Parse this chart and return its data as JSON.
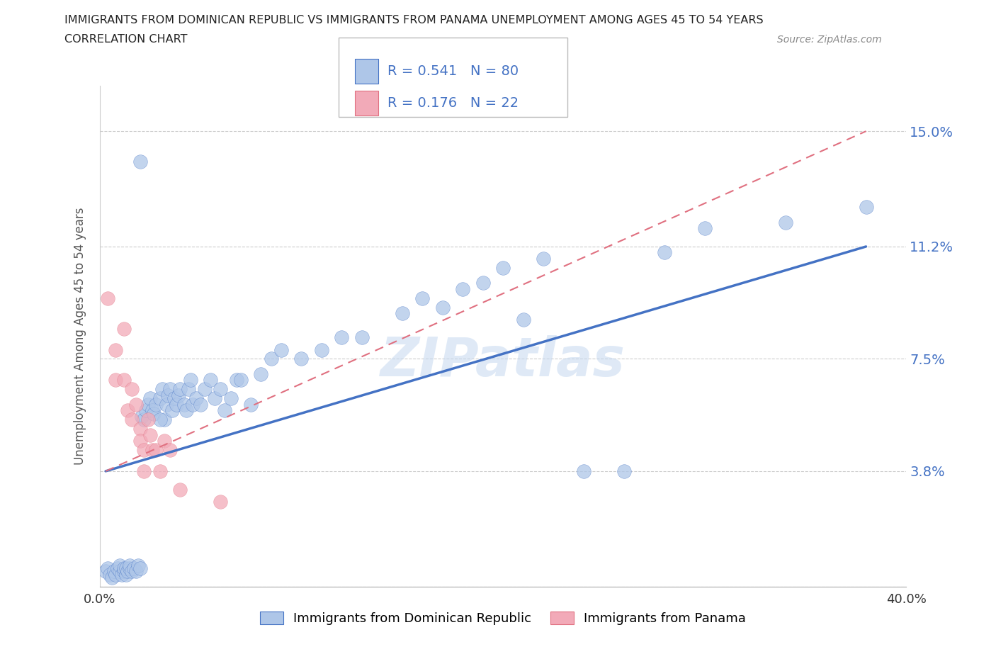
{
  "title_line1": "IMMIGRANTS FROM DOMINICAN REPUBLIC VS IMMIGRANTS FROM PANAMA UNEMPLOYMENT AMONG AGES 45 TO 54 YEARS",
  "title_line2": "CORRELATION CHART",
  "source_text": "Source: ZipAtlas.com",
  "ylabel": "Unemployment Among Ages 45 to 54 years",
  "xlim": [
    0.0,
    0.4
  ],
  "ylim": [
    0.0,
    0.165
  ],
  "ytick_values": [
    0.0,
    0.038,
    0.075,
    0.112,
    0.15
  ],
  "ytick_labels": [
    "",
    "3.8%",
    "7.5%",
    "11.2%",
    "15.0%"
  ],
  "r_blue": 0.541,
  "n_blue": 80,
  "r_pink": 0.176,
  "n_pink": 22,
  "legend_label_blue": "Immigrants from Dominican Republic",
  "legend_label_pink": "Immigrants from Panama",
  "blue_color": "#aec6e8",
  "pink_color": "#f2aab8",
  "trend_blue_color": "#4472c4",
  "trend_pink_color": "#e07080",
  "grid_color": "#cccccc",
  "watermark_color": "#c5d8f0",
  "blue_scatter": [
    [
      0.003,
      0.005
    ],
    [
      0.004,
      0.006
    ],
    [
      0.005,
      0.004
    ],
    [
      0.006,
      0.003
    ],
    [
      0.007,
      0.005
    ],
    [
      0.008,
      0.004
    ],
    [
      0.009,
      0.006
    ],
    [
      0.01,
      0.005
    ],
    [
      0.01,
      0.007
    ],
    [
      0.011,
      0.004
    ],
    [
      0.012,
      0.005
    ],
    [
      0.012,
      0.006
    ],
    [
      0.013,
      0.004
    ],
    [
      0.013,
      0.006
    ],
    [
      0.014,
      0.005
    ],
    [
      0.015,
      0.006
    ],
    [
      0.015,
      0.007
    ],
    [
      0.016,
      0.005
    ],
    [
      0.017,
      0.006
    ],
    [
      0.018,
      0.005
    ],
    [
      0.019,
      0.007
    ],
    [
      0.02,
      0.006
    ],
    [
      0.021,
      0.056
    ],
    [
      0.022,
      0.055
    ],
    [
      0.023,
      0.058
    ],
    [
      0.024,
      0.06
    ],
    [
      0.025,
      0.062
    ],
    [
      0.026,
      0.058
    ],
    [
      0.027,
      0.057
    ],
    [
      0.028,
      0.06
    ],
    [
      0.03,
      0.062
    ],
    [
      0.031,
      0.065
    ],
    [
      0.032,
      0.055
    ],
    [
      0.033,
      0.06
    ],
    [
      0.034,
      0.063
    ],
    [
      0.035,
      0.065
    ],
    [
      0.036,
      0.058
    ],
    [
      0.037,
      0.062
    ],
    [
      0.038,
      0.06
    ],
    [
      0.039,
      0.063
    ],
    [
      0.04,
      0.065
    ],
    [
      0.042,
      0.06
    ],
    [
      0.043,
      0.058
    ],
    [
      0.044,
      0.065
    ],
    [
      0.045,
      0.068
    ],
    [
      0.046,
      0.06
    ],
    [
      0.048,
      0.062
    ],
    [
      0.05,
      0.06
    ],
    [
      0.052,
      0.065
    ],
    [
      0.055,
      0.068
    ],
    [
      0.057,
      0.062
    ],
    [
      0.06,
      0.065
    ],
    [
      0.062,
      0.058
    ],
    [
      0.065,
      0.062
    ],
    [
      0.068,
      0.068
    ],
    [
      0.07,
      0.068
    ],
    [
      0.075,
      0.06
    ],
    [
      0.08,
      0.07
    ],
    [
      0.085,
      0.075
    ],
    [
      0.09,
      0.078
    ],
    [
      0.1,
      0.075
    ],
    [
      0.11,
      0.078
    ],
    [
      0.12,
      0.082
    ],
    [
      0.13,
      0.082
    ],
    [
      0.02,
      0.14
    ],
    [
      0.03,
      0.055
    ],
    [
      0.15,
      0.09
    ],
    [
      0.16,
      0.095
    ],
    [
      0.17,
      0.092
    ],
    [
      0.18,
      0.098
    ],
    [
      0.19,
      0.1
    ],
    [
      0.2,
      0.105
    ],
    [
      0.21,
      0.088
    ],
    [
      0.22,
      0.108
    ],
    [
      0.24,
      0.038
    ],
    [
      0.26,
      0.038
    ],
    [
      0.28,
      0.11
    ],
    [
      0.3,
      0.118
    ],
    [
      0.34,
      0.12
    ],
    [
      0.38,
      0.125
    ]
  ],
  "pink_scatter": [
    [
      0.004,
      0.095
    ],
    [
      0.008,
      0.078
    ],
    [
      0.008,
      0.068
    ],
    [
      0.012,
      0.085
    ],
    [
      0.012,
      0.068
    ],
    [
      0.014,
      0.058
    ],
    [
      0.016,
      0.065
    ],
    [
      0.016,
      0.055
    ],
    [
      0.018,
      0.06
    ],
    [
      0.02,
      0.052
    ],
    [
      0.02,
      0.048
    ],
    [
      0.022,
      0.045
    ],
    [
      0.022,
      0.038
    ],
    [
      0.024,
      0.055
    ],
    [
      0.025,
      0.05
    ],
    [
      0.026,
      0.045
    ],
    [
      0.028,
      0.045
    ],
    [
      0.03,
      0.038
    ],
    [
      0.032,
      0.048
    ],
    [
      0.035,
      0.045
    ],
    [
      0.04,
      0.032
    ],
    [
      0.06,
      0.028
    ]
  ],
  "blue_trend_x": [
    0.003,
    0.38
  ],
  "blue_trend_y": [
    0.038,
    0.112
  ],
  "pink_trend_x": [
    0.003,
    0.38
  ],
  "pink_trend_y": [
    0.038,
    0.15
  ]
}
